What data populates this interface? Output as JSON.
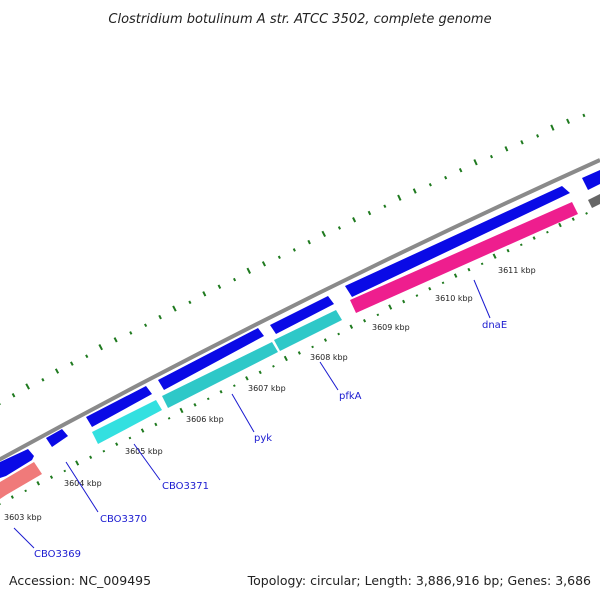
{
  "title": "Clostridium botulinum A str. ATCC 3502, complete genome",
  "footer": {
    "accession": "Accession: NC_009495",
    "topology": "Topology: circular; Length: 3,886,916 bp; Genes: 3,686"
  },
  "colors": {
    "backbone": "#8a8a8a",
    "forward_cds": "#0a0ae6",
    "reverse_cds_cyan": "#33e0e0",
    "reverse_cds_pink": "#ee1e8e",
    "reverse_cds_salmon": "#f07a7a",
    "gc_skew": "#1f7a1f",
    "label": "#1a1ad0"
  },
  "ticks": [
    {
      "label": "3603 kbp"
    },
    {
      "label": "3604 kbp"
    },
    {
      "label": "3605 kbp"
    },
    {
      "label": "3606 kbp"
    },
    {
      "label": "3607 kbp"
    },
    {
      "label": "3608 kbp"
    },
    {
      "label": "3609 kbp"
    },
    {
      "label": "3610 kbp"
    },
    {
      "label": "3611 kbp"
    }
  ],
  "gene_labels": [
    {
      "name": "CBO3369"
    },
    {
      "name": "CBO3370"
    },
    {
      "name": "CBO3371"
    },
    {
      "name": "pyk"
    },
    {
      "name": "pfkA"
    },
    {
      "name": "dnaE"
    }
  ]
}
